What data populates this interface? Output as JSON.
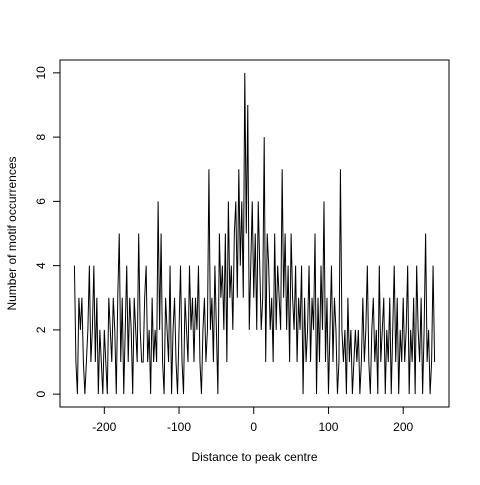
{
  "chart_data": {
    "type": "line",
    "xlabel": "Distance to peak centre",
    "ylabel": "Number of motif occurrences",
    "color": "#000000",
    "xlim": [
      -259.3,
      261.3
    ],
    "ylim": [
      -0.4,
      10.4
    ],
    "xticks": [
      -200,
      -100,
      0,
      100,
      200
    ],
    "yticks": [
      0,
      2,
      4,
      6,
      8,
      10
    ],
    "x": [
      -240,
      -238,
      -236,
      -234,
      -232,
      -230,
      -228,
      -226,
      -224,
      -222,
      -220,
      -218,
      -216,
      -214,
      -212,
      -210,
      -208,
      -206,
      -204,
      -202,
      -200,
      -198,
      -196,
      -194,
      -192,
      -190,
      -188,
      -186,
      -184,
      -182,
      -180,
      -178,
      -176,
      -174,
      -172,
      -170,
      -168,
      -166,
      -164,
      -162,
      -160,
      -158,
      -156,
      -154,
      -152,
      -150,
      -148,
      -146,
      -144,
      -142,
      -140,
      -138,
      -136,
      -134,
      -132,
      -130,
      -128,
      -126,
      -124,
      -122,
      -120,
      -118,
      -116,
      -114,
      -112,
      -110,
      -108,
      -106,
      -104,
      -102,
      -100,
      -98,
      -96,
      -94,
      -92,
      -90,
      -88,
      -86,
      -84,
      -82,
      -80,
      -78,
      -76,
      -74,
      -72,
      -70,
      -68,
      -66,
      -64,
      -62,
      -60,
      -58,
      -56,
      -54,
      -52,
      -50,
      -48,
      -46,
      -44,
      -42,
      -40,
      -38,
      -36,
      -34,
      -32,
      -30,
      -28,
      -26,
      -24,
      -22,
      -20,
      -18,
      -16,
      -14,
      -12,
      -10,
      -8,
      -6,
      -4,
      -2,
      0,
      2,
      4,
      6,
      8,
      10,
      12,
      14,
      16,
      18,
      20,
      22,
      24,
      26,
      28,
      30,
      32,
      34,
      36,
      38,
      40,
      42,
      44,
      46,
      48,
      50,
      52,
      54,
      56,
      58,
      60,
      62,
      64,
      66,
      68,
      70,
      72,
      74,
      76,
      78,
      80,
      82,
      84,
      86,
      88,
      90,
      92,
      94,
      96,
      98,
      100,
      102,
      104,
      106,
      108,
      110,
      112,
      114,
      116,
      118,
      120,
      122,
      124,
      126,
      128,
      130,
      132,
      134,
      136,
      138,
      140,
      142,
      144,
      146,
      148,
      150,
      152,
      154,
      156,
      158,
      160,
      162,
      164,
      166,
      168,
      170,
      172,
      174,
      176,
      178,
      180,
      182,
      184,
      186,
      188,
      190,
      192,
      194,
      196,
      198,
      200,
      202,
      204,
      206,
      208,
      210,
      212,
      214,
      216,
      218,
      220,
      222,
      224,
      226,
      228,
      230,
      232,
      234,
      236,
      238,
      240,
      242
    ],
    "values": [
      4,
      1,
      0,
      3,
      2,
      3,
      1,
      0,
      1,
      2,
      4,
      1,
      2,
      4,
      1,
      3,
      0,
      2,
      1,
      0,
      2,
      1,
      0,
      3,
      2,
      1,
      3,
      2,
      0,
      3,
      5,
      1,
      3,
      0,
      2,
      4,
      1,
      3,
      2,
      0,
      3,
      2,
      1,
      5,
      2,
      1,
      1,
      3,
      4,
      1,
      2,
      0,
      3,
      1,
      2,
      1,
      6,
      2,
      5,
      1,
      0,
      3,
      2,
      1,
      4,
      0,
      2,
      3,
      1,
      0,
      2,
      4,
      1,
      0,
      3,
      2,
      1,
      4,
      2,
      3,
      1,
      3,
      2,
      4,
      1,
      0,
      2,
      3,
      1,
      2,
      7,
      2,
      3,
      1,
      4,
      2,
      0,
      5,
      3,
      4,
      2,
      5,
      1,
      6,
      3,
      4,
      2,
      5,
      6,
      3,
      7,
      4,
      6,
      3,
      10,
      5,
      9,
      2,
      4,
      6,
      3,
      5,
      2,
      6,
      4,
      2,
      3,
      8,
      1,
      5,
      4,
      2,
      3,
      1,
      5,
      2,
      4,
      3,
      2,
      7,
      3,
      5,
      2,
      4,
      1,
      5,
      3,
      2,
      4,
      1,
      3,
      2,
      4,
      0,
      3,
      1,
      2,
      4,
      1,
      3,
      2,
      5,
      0,
      3,
      1,
      4,
      2,
      6,
      1,
      3,
      0,
      2,
      4,
      1,
      3,
      2,
      0,
      1,
      7,
      2,
      1,
      2,
      0,
      3,
      1,
      2,
      0,
      1,
      2,
      1,
      2,
      0,
      1,
      3,
      1,
      2,
      4,
      1,
      0,
      2,
      3,
      1,
      2,
      0,
      4,
      1,
      2,
      3,
      0,
      2,
      1,
      3,
      0,
      2,
      4,
      1,
      3,
      0,
      2,
      1,
      3,
      1,
      2,
      4,
      0,
      2,
      1,
      3,
      0,
      4,
      2,
      1,
      3,
      0,
      2,
      5,
      1,
      2,
      0,
      1,
      4,
      1
    ]
  }
}
